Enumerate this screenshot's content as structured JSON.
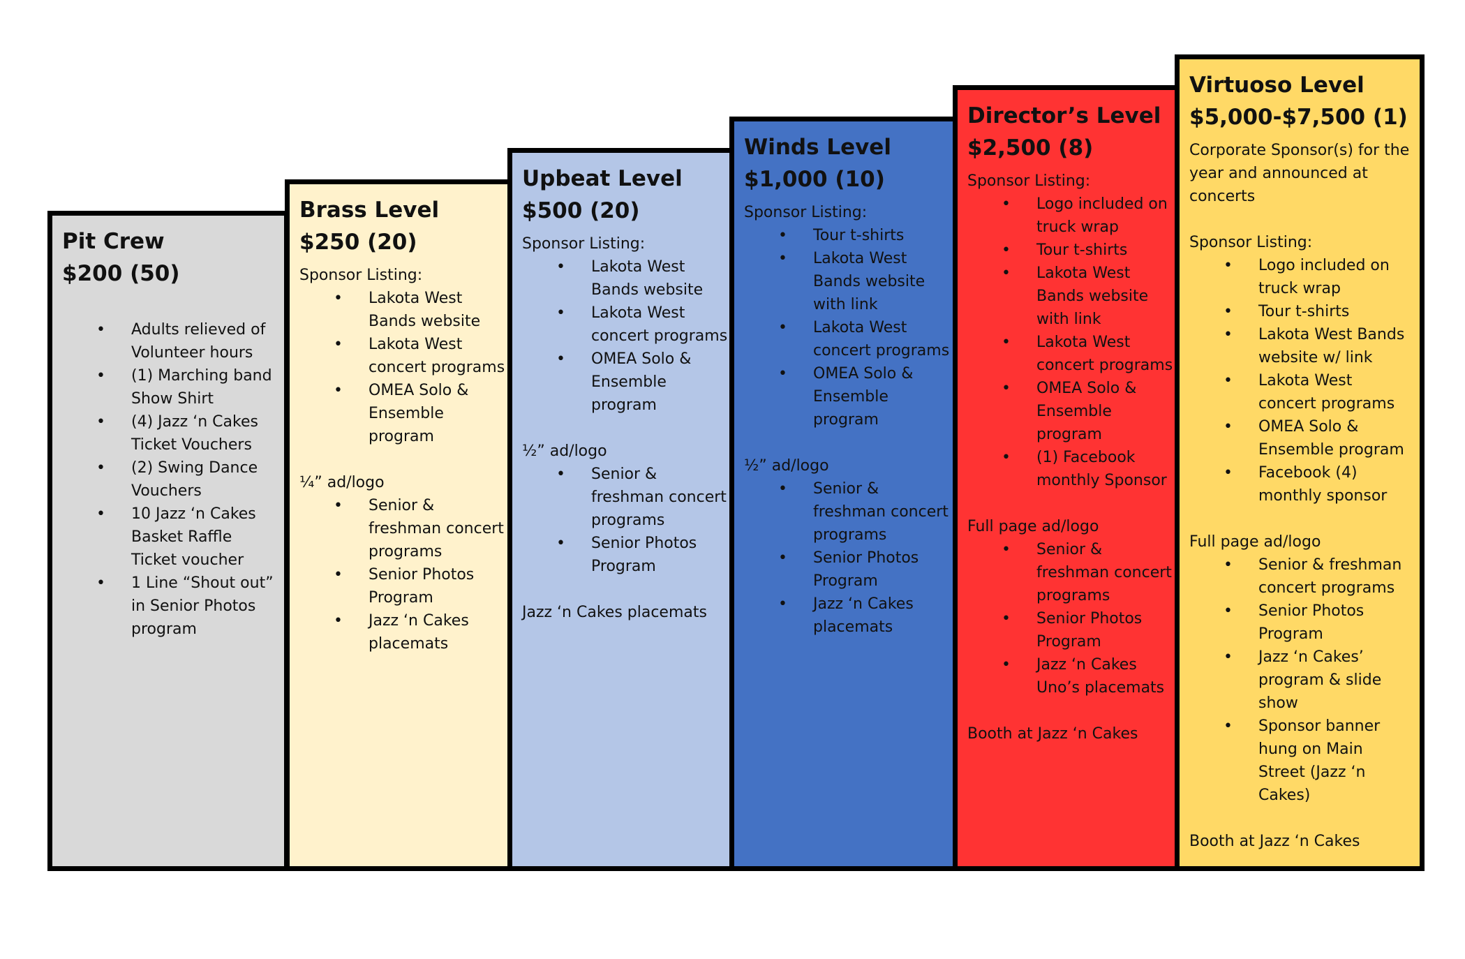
{
  "tiers": [
    {
      "title": "Pit Crew",
      "price": "$200 (50)",
      "color": "#d9d9d9",
      "benefits": [
        "Adults relieved of Volunteer hours",
        "(1) Marching band Show Shirt",
        "(4) Jazz ‘n Cakes Ticket Vouchers",
        "(2) Swing Dance Vouchers",
        "10 Jazz ‘n Cakes Basket Raffle Ticket voucher",
        "1 Line “Shout out” in Senior Photos program"
      ]
    },
    {
      "title": "Brass Level",
      "price": "$250 (20)",
      "color": "#fff2cc",
      "listing_heading": "Sponsor Listing:",
      "listing_items": [
        "Lakota West Bands website",
        "Lakota West concert programs",
        "OMEA Solo & Ensemble program"
      ],
      "ad_heading": "¼” ad/logo",
      "ad_items": [
        "Senior & freshman concert programs",
        "Senior Photos Program",
        "Jazz ‘n Cakes placemats"
      ]
    },
    {
      "title": "Upbeat Level",
      "price": "$500 (20)",
      "color": "#b4c6e7",
      "listing_heading": "Sponsor Listing:",
      "listing_items": [
        "Lakota West Bands website",
        "Lakota West concert programs",
        "OMEA Solo & Ensemble program"
      ],
      "ad_heading": "½” ad/logo",
      "ad_items": [
        "Senior & freshman concert programs",
        "Senior Photos Program"
      ],
      "extra": "Jazz ‘n Cakes placemats"
    },
    {
      "title": "Winds Level",
      "price": "$1,000 (10)",
      "color": "#4472c4",
      "listing_heading": "Sponsor Listing:",
      "listing_items": [
        "Tour t-shirts",
        "Lakota West Bands website with link",
        "Lakota West concert programs",
        "OMEA Solo & Ensemble program"
      ],
      "ad_heading": "½” ad/logo",
      "ad_items": [
        "Senior & freshman concert programs",
        "Senior Photos Program",
        "Jazz ‘n Cakes placemats"
      ]
    },
    {
      "title": "Director’s Level",
      "price": "$2,500  (8)",
      "color": "#ff3333",
      "listing_heading": "Sponsor Listing:",
      "listing_items": [
        "Logo included on truck wrap",
        "Tour t-shirts",
        "Lakota West Bands website with link",
        "Lakota West concert programs",
        "OMEA Solo & Ensemble program",
        "(1) Facebook monthly Sponsor"
      ],
      "ad_heading": "Full page ad/logo",
      "ad_items": [
        "Senior & freshman concert programs",
        "Senior Photos Program",
        "Jazz ‘n Cakes Uno’s placemats"
      ],
      "booth": "Booth at Jazz ‘n Cakes"
    },
    {
      "title": "Virtuoso Level",
      "price": "$5,000-$7,500 (1)",
      "color": "#ffd966",
      "intro": "Corporate Sponsor(s) for the year and announced at concerts",
      "listing_heading": "Sponsor Listing:",
      "listing_items": [
        "Logo included on truck wrap",
        "Tour t-shirts",
        "Lakota West Bands website w/ link",
        "Lakota West concert programs",
        "OMEA Solo & Ensemble program",
        "Facebook (4) monthly sponsor"
      ],
      "ad_heading": "Full page ad/logo",
      "ad_items": [
        "Senior & freshman concert programs",
        "Senior Photos Program",
        "Jazz ‘n Cakes’ program & slide show",
        "Sponsor banner hung on Main Street (Jazz ‘n Cakes)"
      ],
      "booth": "Booth at Jazz ‘n Cakes"
    }
  ]
}
